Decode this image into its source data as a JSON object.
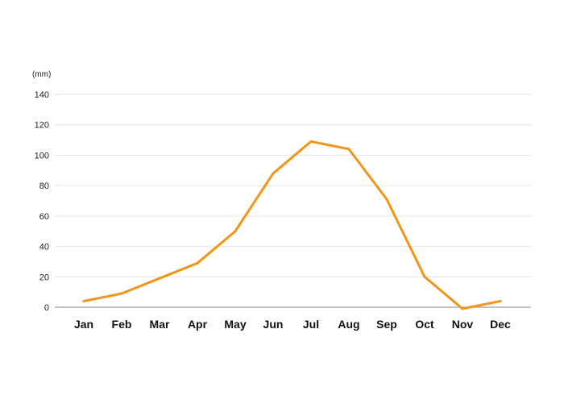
{
  "chart_data": {
    "type": "line",
    "unit_label": "(mm)",
    "categories": [
      "Jan",
      "Feb",
      "Mar",
      "Apr",
      "May",
      "Jun",
      "Jul",
      "Aug",
      "Sep",
      "Oct",
      "Nov",
      "Dec"
    ],
    "series": [
      {
        "values": [
          4,
          9,
          19,
          29,
          50,
          88,
          109,
          104,
          71,
          20,
          -1,
          4
        ],
        "color": "#f39418"
      }
    ],
    "y_ticks": [
      0,
      20,
      40,
      60,
      80,
      100,
      120,
      140
    ],
    "ylim": [
      0,
      140
    ],
    "grid": true,
    "legend": "none"
  }
}
